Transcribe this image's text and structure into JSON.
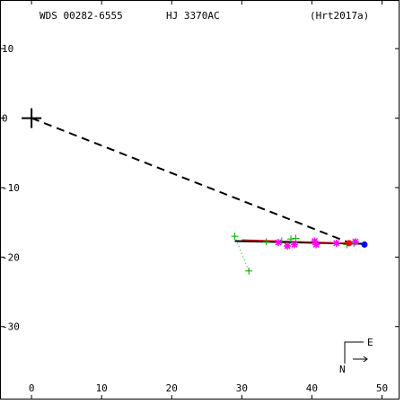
{
  "header": {
    "wds_id": "WDS 00282-6555",
    "discoverer": "HJ 3370AC",
    "reference": "(Hrt2017a)"
  },
  "compass": {
    "east_label": "E",
    "north_label": "N"
  },
  "colors": {
    "axes": "#000000",
    "orbit": "#000000",
    "residual": "#ff0000",
    "plus_obs": "#00aa00",
    "star_obs": "#ff00ff",
    "latest": "#0000ff"
  },
  "chart_data": {
    "type": "scatter",
    "title": "",
    "xlabel": "",
    "ylabel": "",
    "xlim": [
      -4.5,
      52.5
    ],
    "ylim": [
      -40.5,
      17
    ],
    "x_ticks": [
      0,
      10,
      20,
      30,
      40,
      50
    ],
    "y_ticks": [
      10,
      0,
      -10,
      -20,
      -30
    ],
    "primary": {
      "x": 0,
      "y": 0,
      "marker": "cross"
    },
    "line_of_centers": {
      "from": [
        0,
        0
      ],
      "to": [
        45.5,
        -18
      ],
      "style": "dashed"
    },
    "orbit_track": {
      "from": [
        29,
        -17.7
      ],
      "to": [
        47.8,
        -18.1
      ],
      "style": "solid"
    },
    "residual_track": {
      "from": [
        30,
        -17.5
      ],
      "to": [
        45.5,
        -18.0
      ]
    },
    "series": [
      {
        "marker": "plus",
        "points": [
          [
            29,
            -17
          ],
          [
            31,
            -22
          ],
          [
            33.5,
            -17.8
          ],
          [
            35.7,
            -17.7
          ],
          [
            37,
            -17.4
          ],
          [
            37.7,
            -17.3
          ],
          [
            45,
            -18.2
          ],
          [
            46,
            -18
          ]
        ]
      },
      {
        "marker": "star",
        "points": [
          [
            35.2,
            -17.9
          ],
          [
            36.5,
            -18.4
          ],
          [
            37.5,
            -18.2
          ],
          [
            40.4,
            -17.7
          ],
          [
            40.6,
            -18.2
          ],
          [
            43.5,
            -18
          ],
          [
            46.2,
            -17.8
          ]
        ]
      },
      {
        "marker": "filled-circle",
        "points": [
          [
            45.3,
            -18
          ],
          [
            47.5,
            -18.2
          ]
        ]
      }
    ],
    "dotted_links": [
      {
        "from": [
          29,
          -17
        ],
        "to": [
          31,
          -22
        ]
      }
    ]
  }
}
